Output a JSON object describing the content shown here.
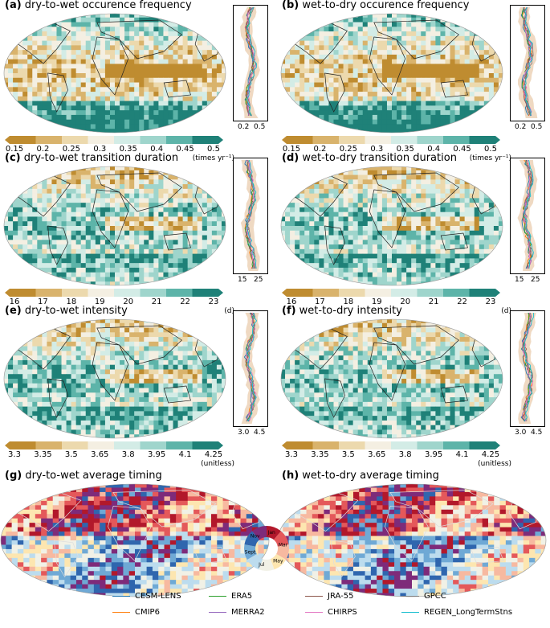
{
  "panels": [
    {
      "id": "a",
      "letter": "(a)",
      "title": "dry-to-wet occurence frequency",
      "ticks": [
        "0.15",
        "0.2",
        "0.25",
        "0.3",
        "0.35",
        "0.4",
        "0.45",
        "0.5"
      ],
      "unit": "(times yr⁻¹)",
      "zonal_ticks": [
        "0.2",
        "0.5"
      ],
      "type": "div"
    },
    {
      "id": "b",
      "letter": "(b)",
      "title": "wet-to-dry occurence frequency",
      "ticks": [
        "0.15",
        "0.2",
        "0.25",
        "0.3",
        "0.35",
        "0.4",
        "0.45",
        "0.5"
      ],
      "unit": "(times yr⁻¹)",
      "zonal_ticks": [
        "0.2",
        "0.5"
      ],
      "type": "div"
    },
    {
      "id": "c",
      "letter": "(c)",
      "title": "dry-to-wet transition duration",
      "ticks": [
        "16",
        "17",
        "18",
        "19",
        "20",
        "21",
        "22",
        "23"
      ],
      "unit": "(d)",
      "zonal_ticks": [
        "15",
        "25"
      ],
      "type": "div"
    },
    {
      "id": "d",
      "letter": "(d)",
      "title": "wet-to-dry transition duration",
      "ticks": [
        "16",
        "17",
        "18",
        "19",
        "20",
        "21",
        "22",
        "23"
      ],
      "unit": "(d)",
      "zonal_ticks": [
        "15",
        "25"
      ],
      "type": "div"
    },
    {
      "id": "e",
      "letter": "(e)",
      "title": "dry-to-wet intensity",
      "ticks": [
        "3.3",
        "3.35",
        "3.5",
        "3.65",
        "3.8",
        "3.95",
        "4.1",
        "4.25"
      ],
      "unit": "(unitless)",
      "zonal_ticks": [
        "3.0",
        "4.5"
      ],
      "type": "div"
    },
    {
      "id": "f",
      "letter": "(f)",
      "title": "wet-to-dry intensity",
      "ticks": [
        "3.3",
        "3.35",
        "3.5",
        "3.65",
        "3.8",
        "3.95",
        "4.1",
        "4.25"
      ],
      "unit": "(unitless)",
      "zonal_ticks": [
        "3.0",
        "4.5"
      ],
      "type": "div"
    },
    {
      "id": "g",
      "letter": "(g)",
      "title": "dry-to-wet average timing",
      "type": "cyc"
    },
    {
      "id": "h",
      "letter": "(h)",
      "title": "wet-to-dry average timing",
      "type": "cyc"
    }
  ],
  "season_wheel": {
    "labels": [
      "Jan",
      "Mar",
      "May",
      "Jul",
      "Sept",
      "Nov"
    ]
  },
  "legend": [
    {
      "name": "CESM-LENS",
      "color": "#1f77b4"
    },
    {
      "name": "CMIP6",
      "color": "#ff7f0e"
    },
    {
      "name": "ERA5",
      "color": "#2ca02c"
    },
    {
      "name": "MERRA2",
      "color": "#9467bd"
    },
    {
      "name": "JRA-55",
      "color": "#8c564b"
    },
    {
      "name": "CHIRPS",
      "color": "#e377c2"
    },
    {
      "name": "GPCC",
      "color": "#7f7f7f"
    },
    {
      "name": "REGEN_LongTermStns",
      "color": "#17becf"
    }
  ],
  "colors": {
    "brown": "#b8862b",
    "teal": "#1a7d73",
    "mid": "#f2f2ea",
    "diverging": [
      "#bf8c30",
      "#d9b36c",
      "#ecd9ad",
      "#f4efe2",
      "#d3ece6",
      "#9fd5cc",
      "#5db4a9",
      "#1f8178"
    ],
    "cyclic": [
      "#b2182b",
      "#e4585a",
      "#f7b9a0",
      "#fde6b0",
      "#f1f1e6",
      "#bcdcee",
      "#6fa9d5",
      "#2f66ae",
      "#7e2b7a"
    ]
  }
}
